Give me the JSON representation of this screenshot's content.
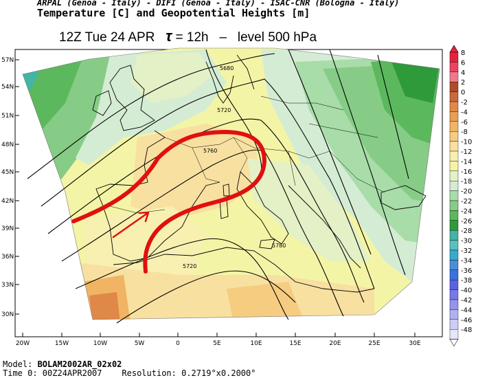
{
  "header": {
    "institutions": "ARPAL (Genoa - Italy)  -  DIFI (Genoa - Italy)  -  ISAC-CNR (Bologna - Italy)",
    "field": "Temperature [C] and Geopotential Heights [m]",
    "time": "12Z Tue 24 APR",
    "tau_symbol": "τ",
    "lead": " = 12h",
    "sep": "–",
    "level": "level 500 hPa"
  },
  "axes": {
    "lat_labels": [
      "57N",
      "54N",
      "51N",
      "48N",
      "45N",
      "42N",
      "39N",
      "36N",
      "33N",
      "30N"
    ],
    "lon_labels": [
      "20W",
      "15W",
      "10W",
      "5W",
      "0",
      "5E",
      "10E",
      "15E",
      "20E",
      "25E",
      "30E"
    ]
  },
  "contours": {
    "labels": [
      "5680",
      "5720",
      "5760",
      "5780",
      "5720"
    ]
  },
  "colorbar": {
    "labels": [
      "8",
      "6",
      "4",
      "2",
      "0",
      "-2",
      "-4",
      "-6",
      "-8",
      "-10",
      "-12",
      "-14",
      "-16",
      "-18",
      "-20",
      "-22",
      "-24",
      "-26",
      "-28",
      "-30",
      "-32",
      "-34",
      "-36",
      "-38",
      "-40",
      "-42",
      "-44",
      "-46",
      "-48"
    ],
    "colors": [
      "#e8203c",
      "#ea4560",
      "#f0788c",
      "#b04a2a",
      "#c86a3c",
      "#e08848",
      "#ea9e52",
      "#f0b464",
      "#f5cc80",
      "#f8e0a0",
      "#f7f0b0",
      "#f4f4a6",
      "#e4f0c6",
      "#d4ecd4",
      "#a8dca8",
      "#86cc86",
      "#5cb85c",
      "#2e9a3a",
      "#43b5a2",
      "#58c0c0",
      "#38aacc",
      "#4a8ed8",
      "#3a70e0",
      "#5a62e2",
      "#7a78e8",
      "#9494ec",
      "#b0b0f2",
      "#ccccf6",
      "#e6e6fa"
    ]
  },
  "footer": {
    "model_label": "Model: ",
    "model_value": "BOLAM2002AR_02x02",
    "time0_label": "Time 0: ",
    "time0_value": "00Z24APR2007",
    "resolution_label": "Resolution: ",
    "resolution_value": "0.2719°x0.2000°"
  }
}
